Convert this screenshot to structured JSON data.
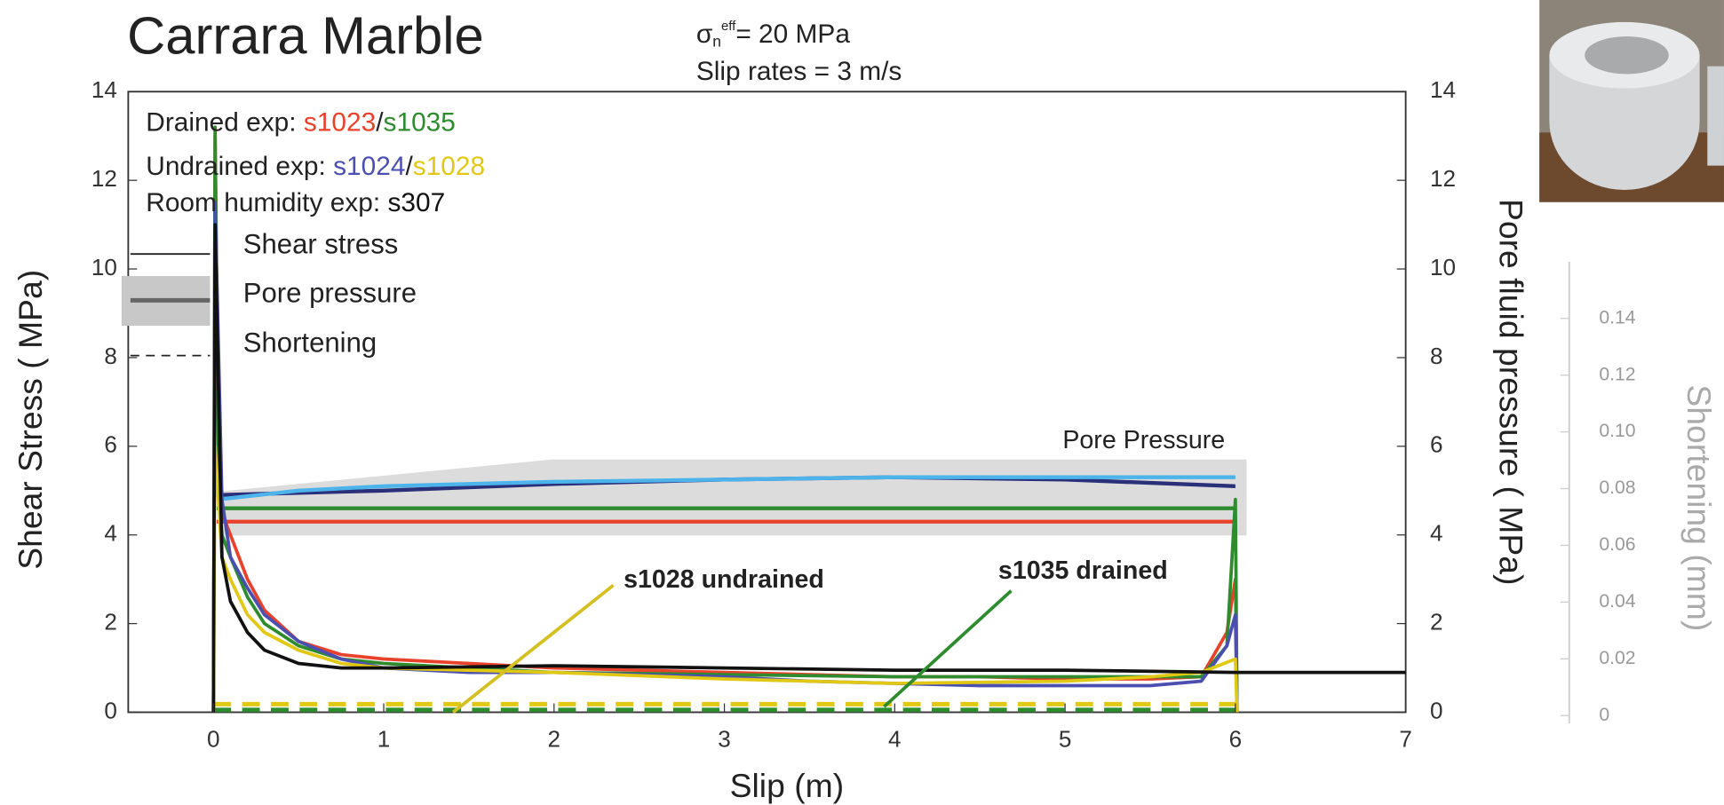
{
  "chart_data": {
    "type": "line",
    "title": "Carrara Marble",
    "subtitle": {
      "symbol": "σ",
      "subscript": "n",
      "superscript": "eff",
      "rest": "= 20 MPa"
    },
    "subtitle_2": "Slip rates = 3 m/s",
    "x_label": "Slip (m)",
    "y_label": "Shear Stress ( MPa)",
    "y2_label": "Pore fluid pressure ( MPa)",
    "y3_label": "Shortening (mm)",
    "xlim": [
      -0.5,
      7
    ],
    "xticks": [
      0,
      1,
      2,
      3,
      4,
      5,
      6,
      7
    ],
    "ylim": [
      0,
      14
    ],
    "yticks": [
      0,
      2,
      4,
      6,
      8,
      10,
      12,
      14
    ],
    "y2lim": [
      0,
      14
    ],
    "y2ticks": [
      0,
      2,
      4,
      6,
      8,
      10,
      12,
      14
    ],
    "y3lim": [
      0,
      0.16
    ],
    "y3ticks": [
      0,
      0.02,
      0.04,
      0.06,
      0.08,
      {
        "value": 0.1,
        "label": "0.10"
      },
      0.12,
      0.14
    ],
    "separator": "/",
    "groups": [
      {
        "label": "Drained exp:",
        "samples": [
          {
            "name": "s1023",
            "color": "#e8412c",
            "shear_stress": {
              "x": [
                0,
                0.01,
                0.03,
                0.05,
                0.1,
                0.2,
                0.3,
                0.5,
                0.75,
                1,
                1.5,
                2,
                2.5,
                3,
                3.5,
                4,
                4.5,
                5,
                5.5,
                5.8,
                5.95,
                6,
                6.01
              ],
              "values": [
                0,
                13,
                6,
                4.5,
                4,
                3,
                2.3,
                1.6,
                1.3,
                1.2,
                1.1,
                1,
                0.95,
                0.9,
                0.85,
                0.8,
                0.8,
                0.75,
                0.75,
                0.8,
                1.8,
                3,
                0
              ]
            },
            "pore_pressure": {
              "x": [
                0.02,
                6
              ],
              "values": [
                4.3,
                4.3
              ]
            }
          },
          {
            "name": "s1035",
            "color": "#2e8b2e",
            "shear_stress": {
              "x": [
                0,
                0.01,
                0.03,
                0.05,
                0.1,
                0.2,
                0.3,
                0.5,
                0.75,
                1,
                1.5,
                2,
                3,
                4,
                5,
                5.8,
                5.95,
                6,
                6.01
              ],
              "values": [
                0,
                13.2,
                5,
                4,
                3.5,
                2.6,
                2,
                1.5,
                1.2,
                1.1,
                1,
                0.9,
                0.85,
                0.8,
                0.8,
                0.8,
                1.5,
                4.8,
                0
              ]
            },
            "pore_pressure": {
              "x": [
                0.02,
                6
              ],
              "values": [
                4.6,
                4.6
              ]
            },
            "shortening": {
              "x": [
                0,
                6
              ],
              "values": [
                0.002,
                0.002
              ]
            }
          }
        ]
      },
      {
        "label": "Undrained exp:",
        "samples": [
          {
            "name": "s1024",
            "color": "#4b4fb0",
            "shear_stress": {
              "x": [
                0,
                0.01,
                0.05,
                0.1,
                0.2,
                0.3,
                0.5,
                0.75,
                1,
                1.5,
                2,
                2.5,
                3,
                3.5,
                4,
                4.5,
                5,
                5.5,
                5.8,
                5.95,
                6,
                6.01
              ],
              "values": [
                0,
                11.5,
                4.8,
                3.5,
                2.8,
                2.2,
                1.6,
                1.2,
                1,
                0.9,
                0.9,
                0.85,
                0.8,
                0.7,
                0.65,
                0.6,
                0.6,
                0.6,
                0.7,
                1.5,
                2.2,
                0
              ]
            },
            "pore_pressure": {
              "color": "#2a2f7a",
              "x": [
                0.03,
                0.5,
                1,
                2,
                3,
                4,
                5,
                6
              ],
              "values": [
                4.9,
                4.95,
                5,
                5.15,
                5.25,
                5.3,
                5.25,
                5.1
              ]
            }
          },
          {
            "name": "s1028",
            "color": "#e0c814",
            "shear_stress": {
              "x": [
                0,
                0.01,
                0.05,
                0.1,
                0.2,
                0.3,
                0.5,
                0.75,
                1,
                2,
                3,
                4,
                5,
                5.5,
                5.8,
                6,
                6.01
              ],
              "values": [
                0,
                6,
                3.5,
                3,
                2.2,
                1.8,
                1.4,
                1.1,
                1,
                0.9,
                0.75,
                0.65,
                0.7,
                0.8,
                0.9,
                1.2,
                0
              ]
            },
            "pore_pressure": {
              "color": "#4cb4ea",
              "x": [
                0.03,
                0.5,
                1,
                2,
                3,
                4,
                5,
                6
              ],
              "values": [
                4.8,
                5,
                5.1,
                5.2,
                5.25,
                5.3,
                5.3,
                5.3
              ]
            },
            "shortening": {
              "x": [
                0,
                6
              ],
              "values": [
                0.004,
                0.004
              ]
            }
          }
        ]
      },
      {
        "label": "Room humidity exp:",
        "samples": [
          {
            "name": "s307",
            "color": "#111111",
            "shear_stress": {
              "x": [
                0,
                0.01,
                0.05,
                0.1,
                0.2,
                0.3,
                0.5,
                0.75,
                1,
                2,
                3,
                4,
                5,
                6,
                6.5,
                7
              ],
              "values": [
                0,
                11,
                3.5,
                2.5,
                1.8,
                1.4,
                1.1,
                1,
                1,
                1.05,
                1,
                0.95,
                0.95,
                0.9,
                0.9,
                0.9
              ]
            }
          }
        ]
      }
    ],
    "line_styles": [
      "Shear stress",
      "Pore pressure",
      "Shortening"
    ],
    "annotations": [
      {
        "text": "Pore Pressure",
        "color": "#222222"
      },
      {
        "text": "s1028 undrained",
        "color": "#d4c020"
      },
      {
        "text": "s1035 drained",
        "color": "#2e8b2e"
      }
    ]
  }
}
